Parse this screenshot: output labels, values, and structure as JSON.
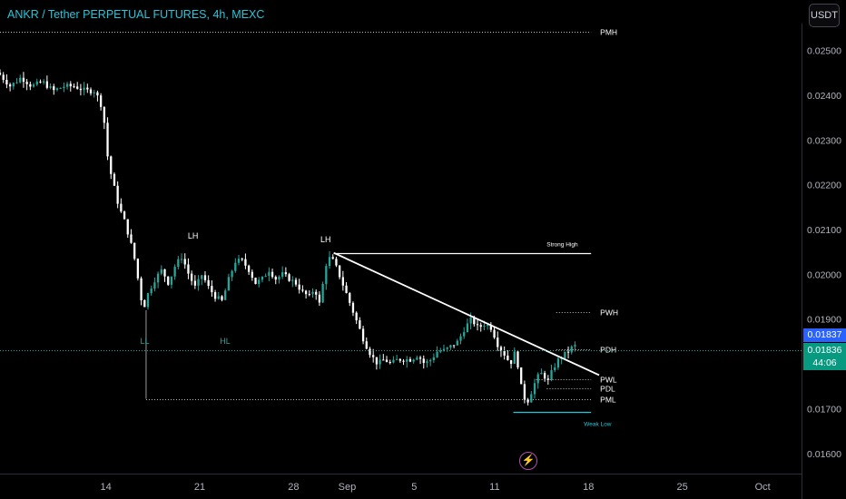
{
  "header": {
    "title": "ANKR / Tether PERPETUAL FUTURES, 4h, MEXC",
    "currency_button": "USDT"
  },
  "price_tags": {
    "last_price": "0.01837",
    "bar_close": "0.01836",
    "countdown": "44:06"
  },
  "colors": {
    "background": "#000000",
    "up": "#26a69a",
    "down": "#ffffff",
    "title": "#26c6da",
    "label_teal": "#26a69a",
    "last_price_tag": "#2962ff",
    "close_tag": "#089981"
  },
  "icons": {
    "replay": "lightning-bolt-icon"
  },
  "chart_data": {
    "type": "candlestick",
    "y_axis": {
      "ticks": [
        0.016,
        0.017,
        0.018,
        0.019,
        0.02,
        0.021,
        0.022,
        0.023,
        0.024,
        0.025
      ],
      "tick_labels": [
        "0.01600",
        "0.01700",
        "0.01800",
        "0.01900",
        "0.02000",
        "0.02100",
        "0.02200",
        "0.02300",
        "0.02400",
        "0.02500"
      ],
      "ylim": [
        0.01555,
        0.0256
      ]
    },
    "x_axis": {
      "ticks": [
        {
          "label": "14",
          "x": 14
        },
        {
          "label": "21",
          "x": 21
        },
        {
          "label": "28",
          "x": 28
        },
        {
          "label": "Sep",
          "x": 32
        },
        {
          "label": "5",
          "x": 37
        },
        {
          "label": "11",
          "x": 43
        },
        {
          "label": "18",
          "x": 50
        },
        {
          "label": "25",
          "x": 57
        },
        {
          "label": "Oct",
          "x": 63
        }
      ],
      "xlim": [
        6.1,
        65.9
      ]
    },
    "candles_path": [
      [
        6.1,
        0.0245
      ],
      [
        7.0,
        0.0242
      ],
      [
        7.8,
        0.0244
      ],
      [
        8.6,
        0.0242
      ],
      [
        9.4,
        0.0243
      ],
      [
        10.2,
        0.0241
      ],
      [
        11.0,
        0.0242
      ],
      [
        11.8,
        0.0242
      ],
      [
        12.6,
        0.0241
      ],
      [
        13.3,
        0.0241
      ],
      [
        13.9,
        0.0237
      ],
      [
        14.3,
        0.0225
      ],
      [
        14.7,
        0.022
      ],
      [
        15.1,
        0.0215
      ],
      [
        15.5,
        0.0212
      ],
      [
        15.9,
        0.0208
      ],
      [
        16.3,
        0.0203
      ],
      [
        16.9,
        0.0192
      ],
      [
        17.3,
        0.0196
      ],
      [
        17.8,
        0.0199
      ],
      [
        18.3,
        0.0201
      ],
      [
        18.8,
        0.0198
      ],
      [
        19.3,
        0.0202
      ],
      [
        19.8,
        0.0204
      ],
      [
        20.3,
        0.02
      ],
      [
        20.8,
        0.0197
      ],
      [
        21.3,
        0.02
      ],
      [
        21.8,
        0.0197
      ],
      [
        22.3,
        0.0195
      ],
      [
        22.8,
        0.0194
      ],
      [
        23.3,
        0.0199
      ],
      [
        23.8,
        0.0203
      ],
      [
        24.3,
        0.0203
      ],
      [
        24.8,
        0.0201
      ],
      [
        25.3,
        0.0198
      ],
      [
        25.8,
        0.0199
      ],
      [
        26.3,
        0.0201
      ],
      [
        26.8,
        0.0199
      ],
      [
        27.3,
        0.02
      ],
      [
        27.8,
        0.0199
      ],
      [
        28.3,
        0.0198
      ],
      [
        28.8,
        0.0196
      ],
      [
        29.3,
        0.0195
      ],
      [
        29.7,
        0.0197
      ],
      [
        30.1,
        0.0193
      ],
      [
        30.5,
        0.0202
      ],
      [
        30.9,
        0.0204
      ],
      [
        31.4,
        0.0201
      ],
      [
        31.9,
        0.0197
      ],
      [
        32.4,
        0.0193
      ],
      [
        32.9,
        0.0189
      ],
      [
        33.4,
        0.0185
      ],
      [
        33.9,
        0.0182
      ],
      [
        34.4,
        0.018
      ],
      [
        34.9,
        0.0181
      ],
      [
        35.4,
        0.018
      ],
      [
        35.9,
        0.0181
      ],
      [
        36.4,
        0.0181
      ],
      [
        36.9,
        0.0181
      ],
      [
        37.4,
        0.0182
      ],
      [
        37.9,
        0.018
      ],
      [
        38.4,
        0.0181
      ],
      [
        38.9,
        0.0183
      ],
      [
        39.4,
        0.0183
      ],
      [
        39.9,
        0.0184
      ],
      [
        40.4,
        0.0185
      ],
      [
        40.9,
        0.0188
      ],
      [
        41.4,
        0.019
      ],
      [
        41.9,
        0.0188
      ],
      [
        42.4,
        0.0189
      ],
      [
        42.9,
        0.0188
      ],
      [
        43.4,
        0.0184
      ],
      [
        43.9,
        0.0182
      ],
      [
        44.3,
        0.018
      ],
      [
        44.7,
        0.0183
      ],
      [
        45.1,
        0.0175
      ],
      [
        45.5,
        0.0171
      ],
      [
        45.9,
        0.0174
      ],
      [
        46.3,
        0.0177
      ],
      [
        46.7,
        0.0178
      ],
      [
        47.1,
        0.0176
      ],
      [
        47.5,
        0.0179
      ],
      [
        47.9,
        0.0181
      ],
      [
        48.3,
        0.0182
      ],
      [
        48.7,
        0.0183
      ],
      [
        49.0,
        0.0184
      ]
    ],
    "candle_count": 172,
    "levels": [
      {
        "label": "PMH",
        "price": 0.02542,
        "style": "dotted",
        "x_from": 6.1,
        "x_to": 50.2
      },
      {
        "label": "PWH",
        "price": 0.01915,
        "style": "dotted",
        "x_from": 47.6,
        "x_to": 50.2
      },
      {
        "label": "PDH",
        "price": 0.01833,
        "style": "dotted",
        "x_from": 47.6,
        "x_to": 50.2
      },
      {
        "label": "PWL",
        "price": 0.01765,
        "style": "dotted",
        "x_from": 46.1,
        "x_to": 50.2
      },
      {
        "label": "PDL",
        "price": 0.01745,
        "style": "dotted",
        "x_from": 46.9,
        "x_to": 50.2
      },
      {
        "label": "PML",
        "price": 0.01722,
        "style": "dotted",
        "x_from": 17.0,
        "x_to": 50.2
      },
      {
        "label": "Strong High",
        "price": 0.02048,
        "style": "solid",
        "x_from": 31.0,
        "x_to": 50.2
      },
      {
        "label": "Weak Low",
        "price": 0.01693,
        "style": "solid",
        "x_from": 44.4,
        "x_to": 50.2
      }
    ],
    "trendline": {
      "from": [
        31.0,
        0.02048
      ],
      "to": [
        50.8,
        0.01775
      ]
    },
    "annotations": [
      {
        "text": "LH",
        "x": 20.5,
        "price": 0.0208,
        "color": "#ffffff"
      },
      {
        "text": "LH",
        "x": 30.4,
        "price": 0.02072,
        "color": "#ffffff"
      },
      {
        "text": "LL",
        "x": 16.9,
        "price": 0.01845,
        "color": "#26a69a"
      },
      {
        "text": "HL",
        "x": 22.9,
        "price": 0.01845,
        "color": "#26a69a"
      }
    ],
    "grid": false
  }
}
